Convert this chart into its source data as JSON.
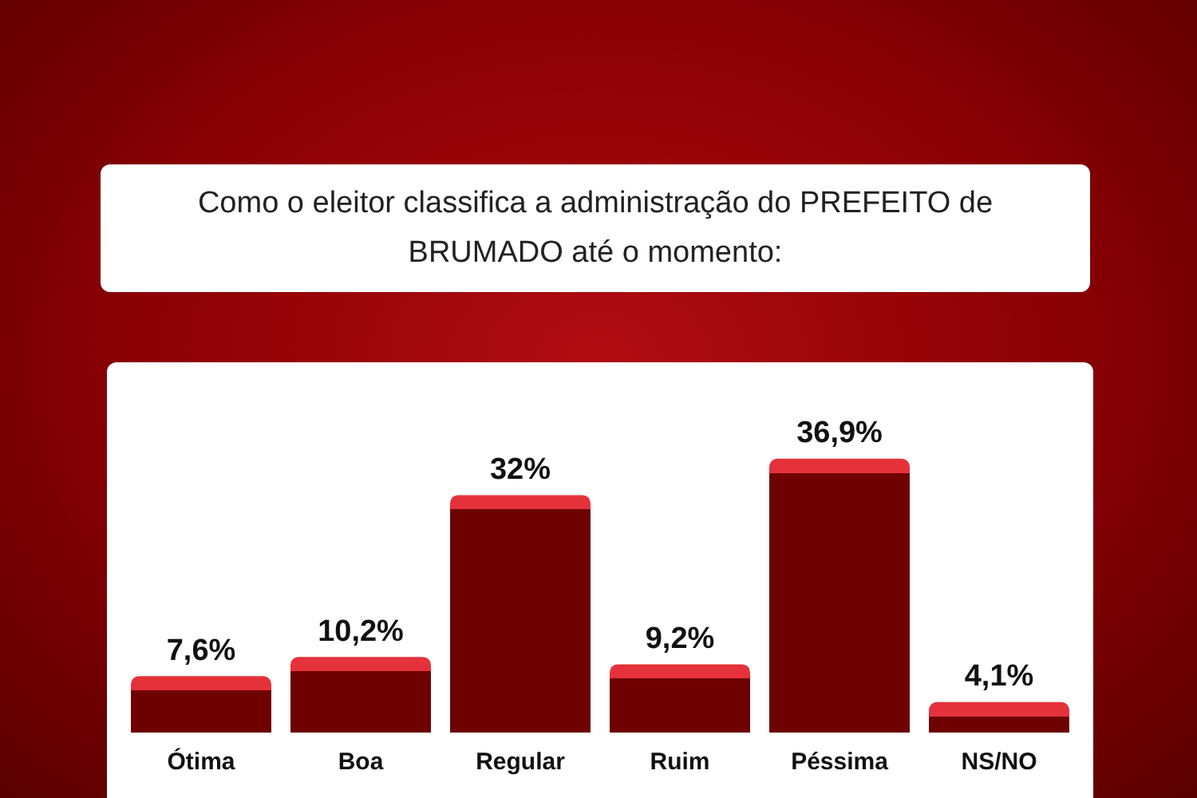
{
  "chart_data": {
    "type": "bar",
    "title": "Como o eleitor classifica a administração do PREFEITO de BRUMADO até o momento:",
    "categories": [
      "Ótima",
      "Boa",
      "Regular",
      "Ruim",
      "Péssima",
      "NS/NO"
    ],
    "values": [
      7.6,
      10.2,
      32,
      9.2,
      36.9,
      4.1
    ],
    "value_labels": [
      "7,6%",
      "10,2%",
      "32%",
      "9,2%",
      "36,9%",
      "4,1%"
    ],
    "color": "#6e0000",
    "grid": false,
    "legend": false
  }
}
